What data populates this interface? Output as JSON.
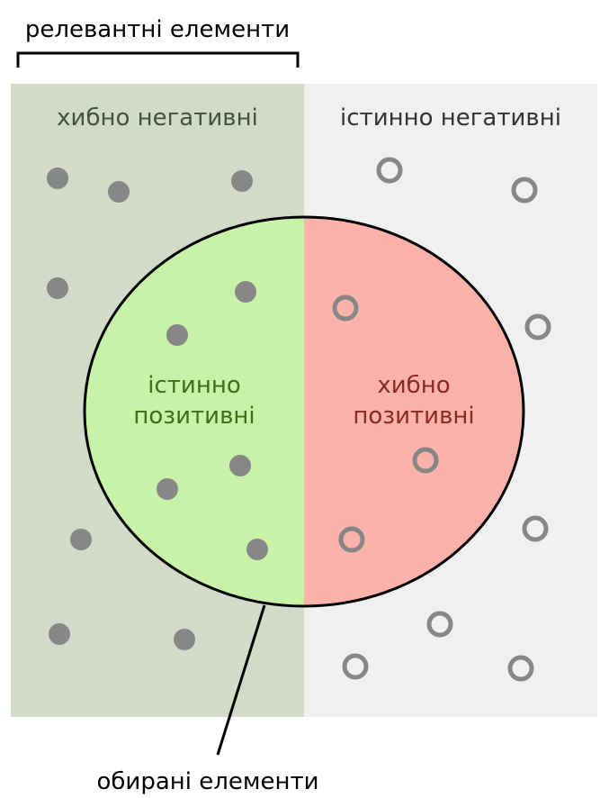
{
  "labels": {
    "relevant": "релевантні елементи",
    "false_negatives": "хибно негативні",
    "true_negatives": "істинно негативні",
    "true_positives_line1": "істинно",
    "true_positives_line2": "позитивні",
    "false_positives_line1": "хибно",
    "false_positives_line2": "позитивні",
    "selected": "обирані елементи"
  },
  "colors": {
    "relevant_region": "#d1dbc8",
    "irrelevant_region": "#f0f0f0",
    "true_positive_fill": "#c9f2a9",
    "false_positive_fill": "#fcb2aa",
    "dot": "#878787",
    "false_negative_text": "#44533a",
    "true_negative_text": "#333333",
    "true_positive_text": "#3f6e16",
    "false_positive_text": "#8a2a22"
  }
}
